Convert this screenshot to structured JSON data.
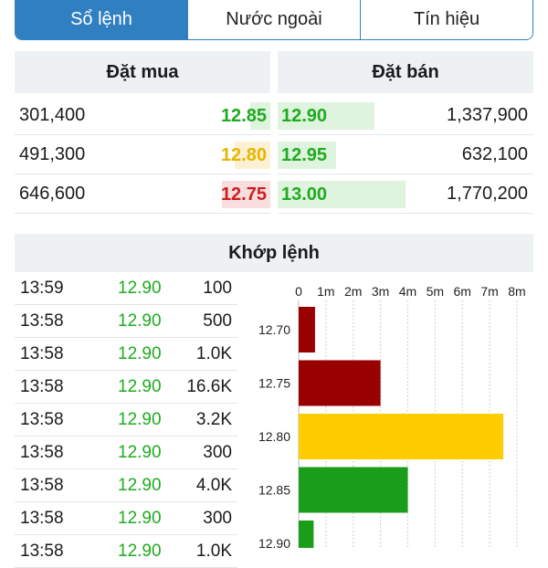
{
  "tabs": [
    {
      "label": "Sổ lệnh",
      "active": true
    },
    {
      "label": "Nước ngoài",
      "active": false
    },
    {
      "label": "Tín hiệu",
      "active": false
    }
  ],
  "colors": {
    "up": "#1fab1f",
    "ref": "#e8b400",
    "down": "#cc1f1f",
    "up_bg": "#dff4de",
    "ref_bg": "#fbf2d3",
    "down_bg": "#f9dede",
    "tab_active": "#2f7fc1"
  },
  "order_book": {
    "bid_header": "Đặt mua",
    "ask_header": "Đặt bán",
    "bids": [
      {
        "volume": "301,400",
        "price": "12.85",
        "color": "#1fab1f",
        "bg": "#dff4de",
        "depth": 0.08
      },
      {
        "volume": "491,300",
        "price": "12.80",
        "color": "#e8b400",
        "bg": "#fbf2d3",
        "depth": 0.14
      },
      {
        "volume": "646,600",
        "price": "12.75",
        "color": "#cc1f1f",
        "bg": "#f9dede",
        "depth": 0.19
      }
    ],
    "asks": [
      {
        "price": "12.90",
        "volume": "1,337,900",
        "color": "#1fab1f",
        "bg": "#dff4de",
        "depth": 0.38
      },
      {
        "price": "12.95",
        "volume": "632,100",
        "color": "#1fab1f",
        "bg": "#dff4de",
        "depth": 0.23
      },
      {
        "price": "13.00",
        "volume": "1,770,200",
        "color": "#1fab1f",
        "bg": "#dff4de",
        "depth": 0.5
      }
    ]
  },
  "matched": {
    "header": "Khớp lệnh",
    "rows": [
      {
        "time": "13:59",
        "price": "12.90",
        "volume": "100"
      },
      {
        "time": "13:58",
        "price": "12.90",
        "volume": "500"
      },
      {
        "time": "13:58",
        "price": "12.90",
        "volume": "1.0K"
      },
      {
        "time": "13:58",
        "price": "12.90",
        "volume": "16.6K"
      },
      {
        "time": "13:58",
        "price": "12.90",
        "volume": "3.2K"
      },
      {
        "time": "13:58",
        "price": "12.90",
        "volume": "300"
      },
      {
        "time": "13:58",
        "price": "12.90",
        "volume": "4.0K"
      },
      {
        "time": "13:58",
        "price": "12.90",
        "volume": "300"
      },
      {
        "time": "13:58",
        "price": "12.90",
        "volume": "1.0K"
      }
    ]
  },
  "chart_data": {
    "type": "bar",
    "orientation": "horizontal",
    "x_ticks": [
      "0",
      "1m",
      "2m",
      "3m",
      "4m",
      "5m",
      "6m",
      "7m",
      "8m"
    ],
    "xlim": [
      0,
      8
    ],
    "grid": true,
    "categories": [
      "12.70",
      "12.75",
      "12.80",
      "12.85",
      "12.90"
    ],
    "values": [
      0.6,
      3.0,
      7.5,
      4.0,
      0.55
    ],
    "bar_colors": [
      "#990000",
      "#990000",
      "#ffcc00",
      "#1a9e1a",
      "#1a9e1a"
    ]
  }
}
